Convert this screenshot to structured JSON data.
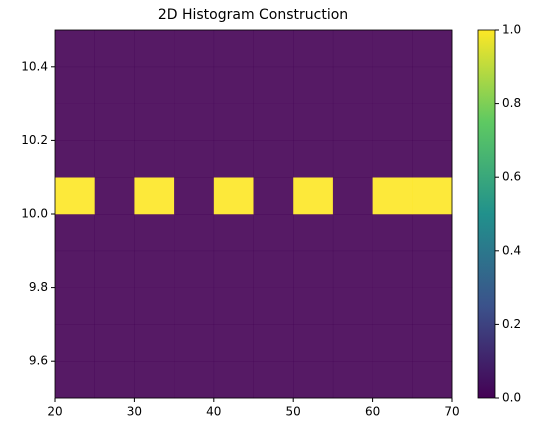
{
  "chart_data": {
    "type": "histogram2d",
    "title": "2D Histogram Construction",
    "xbins": [
      20,
      25,
      30,
      35,
      40,
      45,
      50,
      55,
      60,
      65,
      70
    ],
    "ybins": [
      9.5,
      9.6,
      9.7,
      9.8,
      9.9,
      10.0,
      10.1,
      10.2,
      10.3,
      10.4,
      10.5
    ],
    "counts": [
      [
        0,
        0,
        0,
        0,
        0,
        0,
        0,
        0,
        0,
        0
      ],
      [
        0,
        0,
        0,
        0,
        0,
        0,
        0,
        0,
        0,
        0
      ],
      [
        0,
        0,
        0,
        0,
        0,
        0,
        0,
        0,
        0,
        0
      ],
      [
        0,
        0,
        0,
        0,
        0,
        0,
        0,
        0,
        0,
        0
      ],
      [
        0,
        0,
        0,
        0,
        0,
        0,
        0,
        0,
        0,
        0
      ],
      [
        1,
        0,
        1,
        0,
        1,
        0,
        1,
        0,
        1,
        1
      ],
      [
        0,
        0,
        0,
        0,
        0,
        0,
        0,
        0,
        0,
        0
      ],
      [
        0,
        0,
        0,
        0,
        0,
        0,
        0,
        0,
        0,
        0
      ],
      [
        0,
        0,
        0,
        0,
        0,
        0,
        0,
        0,
        0,
        0
      ],
      [
        0,
        0,
        0,
        0,
        0,
        0,
        0,
        0,
        0,
        0
      ]
    ],
    "xlim": [
      20,
      70
    ],
    "ylim": [
      9.5,
      10.5
    ],
    "xticks": [
      20,
      30,
      40,
      50,
      60,
      70
    ],
    "yticks": [
      9.6,
      9.8,
      {
        "value": 10,
        "label": "10.0"
      },
      10.2,
      10.4
    ],
    "colormap": [
      "#440154",
      "#3b528b",
      "#21918c",
      "#5ec962",
      "#fde725"
    ],
    "alpha": 0.9,
    "colorbar": {
      "clim": [
        0,
        1
      ],
      "ticks": [
        {
          "value": 0,
          "label": "0.0"
        },
        0.2,
        0.4,
        0.6,
        0.8,
        {
          "value": 1,
          "label": "1.0"
        }
      ]
    }
  }
}
